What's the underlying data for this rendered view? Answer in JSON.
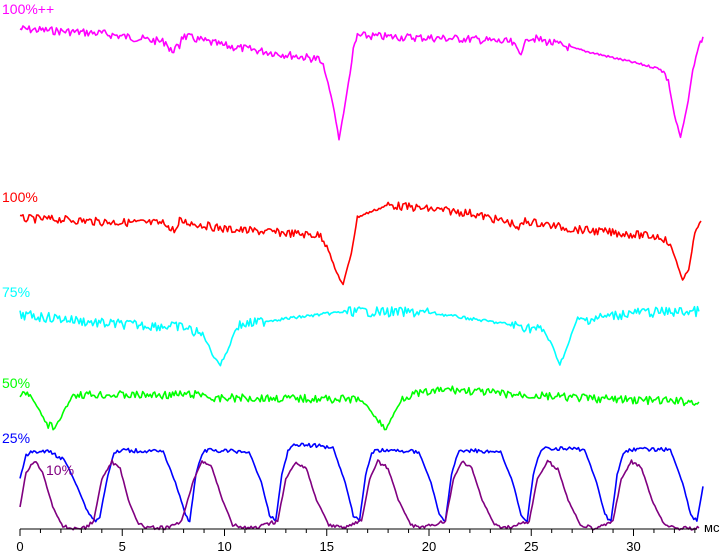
{
  "chart_data": {
    "type": "line",
    "title": "",
    "xlabel": "мс",
    "ylabel": "",
    "xlim": [
      0,
      33.6
    ],
    "x_ticks": [
      0,
      5,
      10,
      15,
      20,
      25,
      30
    ],
    "grid": false,
    "legend": "none",
    "series": [
      {
        "name": "100%++",
        "color": "#ff00ff",
        "x": [
          0,
          2,
          4,
          6,
          7.2,
          7.3,
          7.8,
          7.9,
          10,
          14.6,
          14.9,
          15.3,
          15.6,
          15.9,
          16.3,
          16.5,
          18,
          22,
          24,
          24.5,
          24.8,
          27,
          31.4,
          31.7,
          32,
          32.3,
          32.6,
          32.9,
          33.2,
          33.4
        ],
        "values": [
          0.92,
          0.9,
          0.88,
          0.83,
          0.8,
          0.72,
          0.76,
          0.86,
          0.77,
          0.65,
          0.55,
          0.25,
          -0.06,
          0.25,
          0.72,
          0.86,
          0.85,
          0.83,
          0.8,
          0.7,
          0.85,
          0.75,
          0.56,
          0.46,
          0.15,
          -0.05,
          0.2,
          0.55,
          0.78,
          0.85
        ]
      },
      {
        "name": "100%",
        "color": "#ff0000",
        "x": [
          0,
          2,
          4,
          7.2,
          7.3,
          7.7,
          7.8,
          10,
          14.7,
          15.0,
          15.4,
          15.8,
          16.2,
          16.5,
          18,
          22,
          24.2,
          24.3,
          24.7,
          27,
          31.4,
          31.8,
          32.1,
          32.4,
          32.7,
          33.0,
          33.3
        ],
        "values": [
          0.83,
          0.82,
          0.79,
          0.77,
          0.69,
          0.7,
          0.8,
          0.7,
          0.62,
          0.5,
          0.2,
          0.0,
          0.4,
          0.85,
          1.0,
          0.9,
          0.76,
          0.68,
          0.8,
          0.7,
          0.6,
          0.5,
          0.3,
          0.05,
          0.2,
          0.65,
          0.8
        ]
      },
      {
        "name": "75%",
        "color": "#00ffff",
        "x": [
          0,
          2,
          4,
          8,
          9.0,
          9.4,
          9.8,
          10.2,
          10.6,
          12,
          16,
          20,
          24,
          25.6,
          26.0,
          26.4,
          26.8,
          27.2,
          30,
          33.2
        ],
        "values": [
          0.8,
          0.74,
          0.66,
          0.6,
          0.45,
          0.15,
          -0.03,
          0.25,
          0.62,
          0.7,
          0.86,
          0.84,
          0.64,
          0.55,
          0.3,
          -0.02,
          0.3,
          0.7,
          0.84,
          0.86
        ]
      },
      {
        "name": "50%",
        "color": "#00ff00",
        "x": [
          0,
          0.5,
          0.9,
          1.3,
          1.7,
          2.1,
          2.6,
          6,
          9,
          9.5,
          10,
          14,
          16.6,
          17.1,
          17.6,
          17.9,
          18.3,
          18.7,
          19.2,
          20,
          21,
          24,
          28,
          33.2
        ],
        "values": [
          0.8,
          0.78,
          0.45,
          0.1,
          -0.02,
          0.35,
          0.8,
          0.78,
          0.8,
          0.65,
          0.72,
          0.7,
          0.68,
          0.45,
          0.1,
          -0.02,
          0.35,
          0.72,
          0.8,
          0.85,
          0.92,
          0.8,
          0.7,
          0.62
        ]
      },
      {
        "name": "25%",
        "color": "#0000ff",
        "x": [
          0,
          0.3,
          0.6,
          1.5,
          2.2,
          2.8,
          3.3,
          3.7,
          3.9,
          4.3,
          4.6,
          5.0,
          7.0,
          7.6,
          8.1,
          8.3,
          8.6,
          8.9,
          9.2,
          11.2,
          11.8,
          12.2,
          12.5,
          12.8,
          13.1,
          13.4,
          15.3,
          15.9,
          16.3,
          16.6,
          16.9,
          17.2,
          17.5,
          19.5,
          20.1,
          20.5,
          20.8,
          21.1,
          21.4,
          21.7,
          23.5,
          24.1,
          24.5,
          24.8,
          25.1,
          25.4,
          25.7,
          27.6,
          28.2,
          28.6,
          28.9,
          29.2,
          29.5,
          29.8,
          31.8,
          32.4,
          32.8,
          33.1,
          33.4
        ],
        "values": [
          0.55,
          0.85,
          0.9,
          0.9,
          0.78,
          0.45,
          0.12,
          0.0,
          0.05,
          0.6,
          0.88,
          0.92,
          0.9,
          0.5,
          0.08,
          0.0,
          0.6,
          0.88,
          0.92,
          0.9,
          0.5,
          0.08,
          0.0,
          0.6,
          0.9,
          1.0,
          0.96,
          0.5,
          0.08,
          0.0,
          0.6,
          0.88,
          0.92,
          0.9,
          0.5,
          0.08,
          0.0,
          0.6,
          0.88,
          0.92,
          0.9,
          0.5,
          0.08,
          0.0,
          0.6,
          0.88,
          0.95,
          0.93,
          0.5,
          0.08,
          0.0,
          0.6,
          0.88,
          0.93,
          0.93,
          0.5,
          0.08,
          0.0,
          0.45
        ]
      },
      {
        "name": "10%",
        "color": "#800080",
        "x": [
          0,
          0.3,
          0.7,
          1.1,
          1.6,
          2.1,
          2.6,
          3.2,
          3.6,
          4.0,
          4.5,
          4.9,
          5.3,
          5.8,
          6.3,
          6.8,
          7.3,
          7.9,
          8.5,
          8.9,
          9.4,
          9.9,
          10.4,
          11.0,
          11.6,
          12.6,
          13.0,
          13.5,
          14.0,
          14.5,
          15.1,
          15.7,
          16.7,
          17.1,
          17.5,
          18.0,
          18.5,
          19.1,
          19.7,
          20.8,
          21.2,
          21.6,
          22.1,
          22.6,
          23.2,
          23.8,
          24.9,
          25.3,
          25.8,
          26.3,
          26.8,
          27.4,
          28.0,
          29.0,
          29.4,
          29.9,
          30.4,
          30.9,
          31.5,
          32.1,
          33.2
        ],
        "values": [
          0.3,
          0.8,
          0.95,
          0.8,
          0.3,
          0.02,
          0.0,
          0.0,
          0.1,
          0.7,
          0.95,
          0.85,
          0.4,
          0.05,
          0.0,
          0.0,
          0.0,
          0.1,
          0.7,
          0.95,
          0.85,
          0.4,
          0.05,
          0.0,
          0.0,
          0.1,
          0.7,
          0.95,
          0.85,
          0.4,
          0.05,
          0.0,
          0.1,
          0.7,
          0.95,
          0.85,
          0.4,
          0.05,
          0.0,
          0.1,
          0.7,
          0.95,
          0.85,
          0.4,
          0.05,
          0.0,
          0.1,
          0.7,
          0.95,
          0.85,
          0.4,
          0.05,
          0.0,
          0.1,
          0.7,
          0.95,
          0.85,
          0.4,
          0.05,
          0.0,
          0.0
        ]
      }
    ]
  }
}
